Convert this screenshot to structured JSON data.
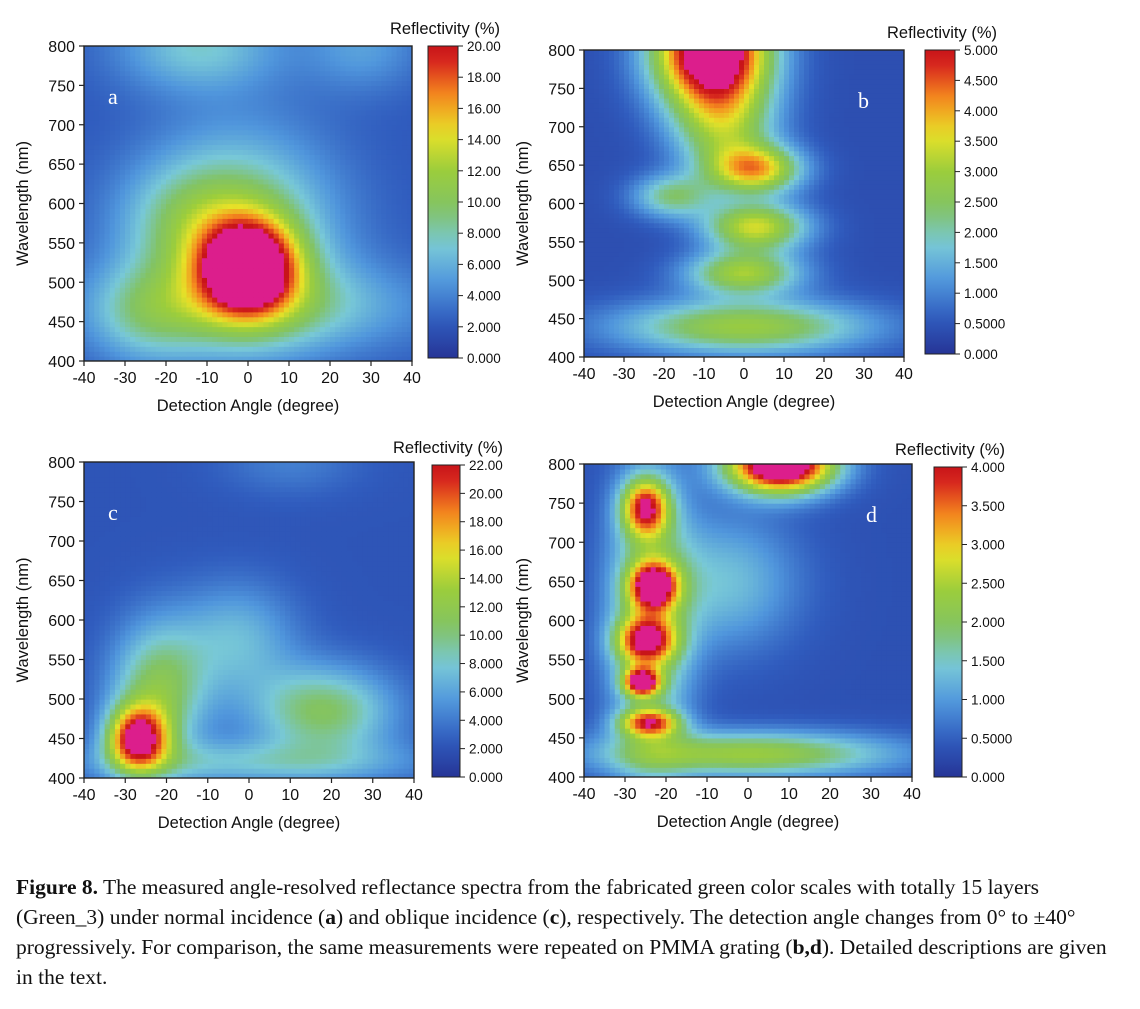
{
  "figure": {
    "panels": [
      {
        "letter": "a",
        "colorbar_title": "Reflectivity (%)",
        "colorbar_ticks": [
          "0.000",
          "2.000",
          "4.000",
          "6.000",
          "8.000",
          "10.00",
          "12.00",
          "14.00",
          "16.00",
          "18.00",
          "20.00"
        ]
      },
      {
        "letter": "b",
        "colorbar_title": "Reflectivity (%)",
        "colorbar_ticks": [
          "0.000",
          "0.5000",
          "1.000",
          "1.500",
          "2.000",
          "2.500",
          "3.000",
          "3.500",
          "4.000",
          "4.500",
          "5.000"
        ]
      },
      {
        "letter": "c",
        "colorbar_title": "Reflectivity (%)",
        "colorbar_ticks": [
          "0.000",
          "2.000",
          "4.000",
          "6.000",
          "8.000",
          "10.00",
          "12.00",
          "14.00",
          "16.00",
          "18.00",
          "20.00",
          "22.00"
        ]
      },
      {
        "letter": "d",
        "colorbar_title": "Reflectivity (%)",
        "colorbar_ticks": [
          "0.000",
          "0.5000",
          "1.000",
          "1.500",
          "2.000",
          "2.500",
          "3.000",
          "3.500",
          "4.000"
        ]
      }
    ],
    "x_ticks": [
      "-40",
      "-30",
      "-20",
      "-10",
      "0",
      "10",
      "20",
      "30",
      "40"
    ],
    "y_ticks": [
      "400",
      "450",
      "500",
      "550",
      "600",
      "650",
      "700",
      "750",
      "800"
    ],
    "xlabel": "Detection Angle (degree)",
    "ylabel": "Wavelength (nm)"
  },
  "caption": {
    "label": "Figure 8.",
    "text_1": " The measured angle-resolved reflectance spectra from the fabricated green color scales with totally 15 layers (Green_3) under normal incidence (",
    "bold_a": "a",
    "text_2": ") and oblique incidence (",
    "bold_c": "c",
    "text_3": "), respectively. The detection angle changes from 0° to ±40° progressively. For comparison, the same measurements were repeated on PMMA grating (",
    "bold_bd": "b,d",
    "text_4": "). Detailed descriptions are given in the text."
  },
  "chart_data": [
    {
      "type": "heatmap",
      "panel": "a",
      "xlabel": "Detection Angle (degree)",
      "ylabel": "Wavelength (nm)",
      "colorbar_label": "Reflectivity (%)",
      "xlim": [
        -40,
        40
      ],
      "ylim": [
        400,
        800
      ],
      "zlim": [
        0,
        20
      ],
      "background": 2.2,
      "peaks": [
        {
          "x": 0,
          "y": 520,
          "z": 19.5,
          "sx": 8,
          "sy": 40
        },
        {
          "x": -2,
          "y": 560,
          "z": 8,
          "sx": 16,
          "sy": 90
        },
        {
          "x": 5,
          "y": 470,
          "z": 5,
          "sx": 26,
          "sy": 40
        },
        {
          "x": -25,
          "y": 460,
          "z": 4,
          "sx": 10,
          "sy": 45
        },
        {
          "x": -15,
          "y": 580,
          "z": 3.5,
          "sx": 12,
          "sy": 50
        },
        {
          "x": -12,
          "y": 800,
          "z": 5,
          "sx": 14,
          "sy": 40
        },
        {
          "x": 28,
          "y": 800,
          "z": 3,
          "sx": 10,
          "sy": 40
        }
      ]
    },
    {
      "type": "heatmap",
      "panel": "b",
      "xlabel": "Detection Angle (degree)",
      "ylabel": "Wavelength (nm)",
      "colorbar_label": "Reflectivity (%)",
      "xlim": [
        -40,
        40
      ],
      "ylim": [
        400,
        800
      ],
      "zlim": [
        0,
        5
      ],
      "background": 0.4,
      "peaks": [
        {
          "x": -8,
          "y": 800,
          "z": 6,
          "sx": 10,
          "sy": 50
        },
        {
          "x": 3,
          "y": 645,
          "z": 3.2,
          "sx": 8,
          "sy": 22
        },
        {
          "x": 3,
          "y": 570,
          "z": 3.0,
          "sx": 9,
          "sy": 22
        },
        {
          "x": 0,
          "y": 510,
          "z": 2.6,
          "sx": 10,
          "sy": 20
        },
        {
          "x": -5,
          "y": 700,
          "z": 2.2,
          "sx": 9,
          "sy": 45
        },
        {
          "x": -18,
          "y": 610,
          "z": 1.8,
          "sx": 7,
          "sy": 20
        },
        {
          "x": 0,
          "y": 440,
          "z": 2.5,
          "sx": 22,
          "sy": 25
        }
      ]
    },
    {
      "type": "heatmap",
      "panel": "c",
      "xlabel": "Detection Angle (degree)",
      "ylabel": "Wavelength (nm)",
      "colorbar_label": "Reflectivity (%)",
      "xlim": [
        -40,
        40
      ],
      "ylim": [
        400,
        800
      ],
      "zlim": [
        0,
        22
      ],
      "background": 2.2,
      "peaks": [
        {
          "x": -27,
          "y": 450,
          "z": 19,
          "sx": 5,
          "sy": 28
        },
        {
          "x": -22,
          "y": 510,
          "z": 9,
          "sx": 8,
          "sy": 60
        },
        {
          "x": 18,
          "y": 485,
          "z": 8.5,
          "sx": 12,
          "sy": 40
        },
        {
          "x": -3,
          "y": 575,
          "z": 5,
          "sx": 10,
          "sy": 50
        },
        {
          "x": 0,
          "y": 420,
          "z": 5,
          "sx": 30,
          "sy": 20
        },
        {
          "x": 10,
          "y": 800,
          "z": 2,
          "sx": 12,
          "sy": 30
        }
      ]
    },
    {
      "type": "heatmap",
      "panel": "d",
      "xlabel": "Detection Angle (degree)",
      "ylabel": "Wavelength (nm)",
      "colorbar_label": "Reflectivity (%)",
      "xlim": [
        -40,
        40
      ],
      "ylim": [
        400,
        800
      ],
      "zlim": [
        0,
        4
      ],
      "background": 0.35,
      "peaks": [
        {
          "x": 8,
          "y": 800,
          "z": 5,
          "sx": 9,
          "sy": 25
        },
        {
          "x": -25,
          "y": 745,
          "z": 3.0,
          "sx": 4,
          "sy": 25
        },
        {
          "x": -23,
          "y": 645,
          "z": 3.2,
          "sx": 4,
          "sy": 20
        },
        {
          "x": -25,
          "y": 575,
          "z": 2.6,
          "sx": 5,
          "sy": 20
        },
        {
          "x": -26,
          "y": 522,
          "z": 3.4,
          "sx": 3,
          "sy": 12
        },
        {
          "x": -24,
          "y": 470,
          "z": 2.6,
          "sx": 5,
          "sy": 12
        },
        {
          "x": -24,
          "y": 600,
          "z": 1.8,
          "sx": 7,
          "sy": 130
        },
        {
          "x": -5,
          "y": 650,
          "z": 1.0,
          "sx": 12,
          "sy": 60
        },
        {
          "x": 0,
          "y": 430,
          "z": 2.0,
          "sx": 25,
          "sy": 20
        }
      ]
    }
  ]
}
